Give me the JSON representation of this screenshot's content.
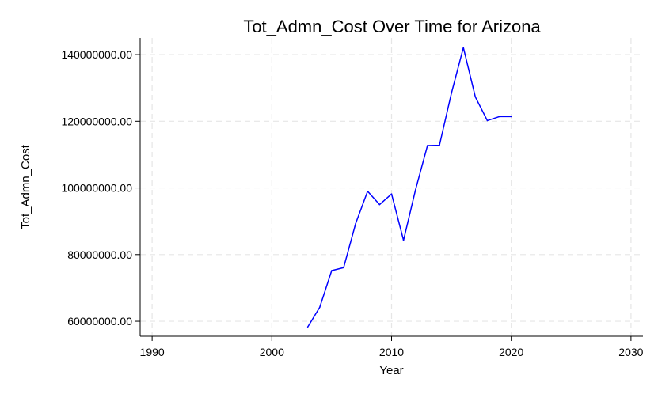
{
  "chart_data": {
    "type": "line",
    "title": "Tot_Admn_Cost Over Time for Arizona",
    "xlabel": "Year",
    "ylabel": "Tot_Admn_Cost",
    "xlim": [
      1989,
      2031
    ],
    "ylim": [
      55500000,
      145000000
    ],
    "x_ticks": [
      1990,
      2000,
      2010,
      2020,
      2030
    ],
    "x_tick_labels": [
      "1990",
      "2000",
      "2010",
      "2020",
      "2030"
    ],
    "y_ticks": [
      60000000,
      80000000,
      100000000,
      120000000,
      140000000
    ],
    "y_tick_labels": [
      "60000000.00",
      "80000000.00",
      "100000000.00",
      "120000000.00",
      "140000000.00"
    ],
    "grid": true,
    "series": [
      {
        "color": "#0000ff",
        "x": [
          2003,
          2004,
          2005,
          2006,
          2007,
          2008,
          2009,
          2010,
          2011,
          2012,
          2013,
          2014,
          2015,
          2016,
          2017,
          2018,
          2019,
          2020
        ],
        "values": [
          58300000,
          64200000,
          75200000,
          76100000,
          89300000,
          99000000,
          95000000,
          98200000,
          84300000,
          99400000,
          112700000,
          112800000,
          128400000,
          142100000,
          127300000,
          120200000,
          121400000,
          121400000
        ]
      }
    ]
  }
}
